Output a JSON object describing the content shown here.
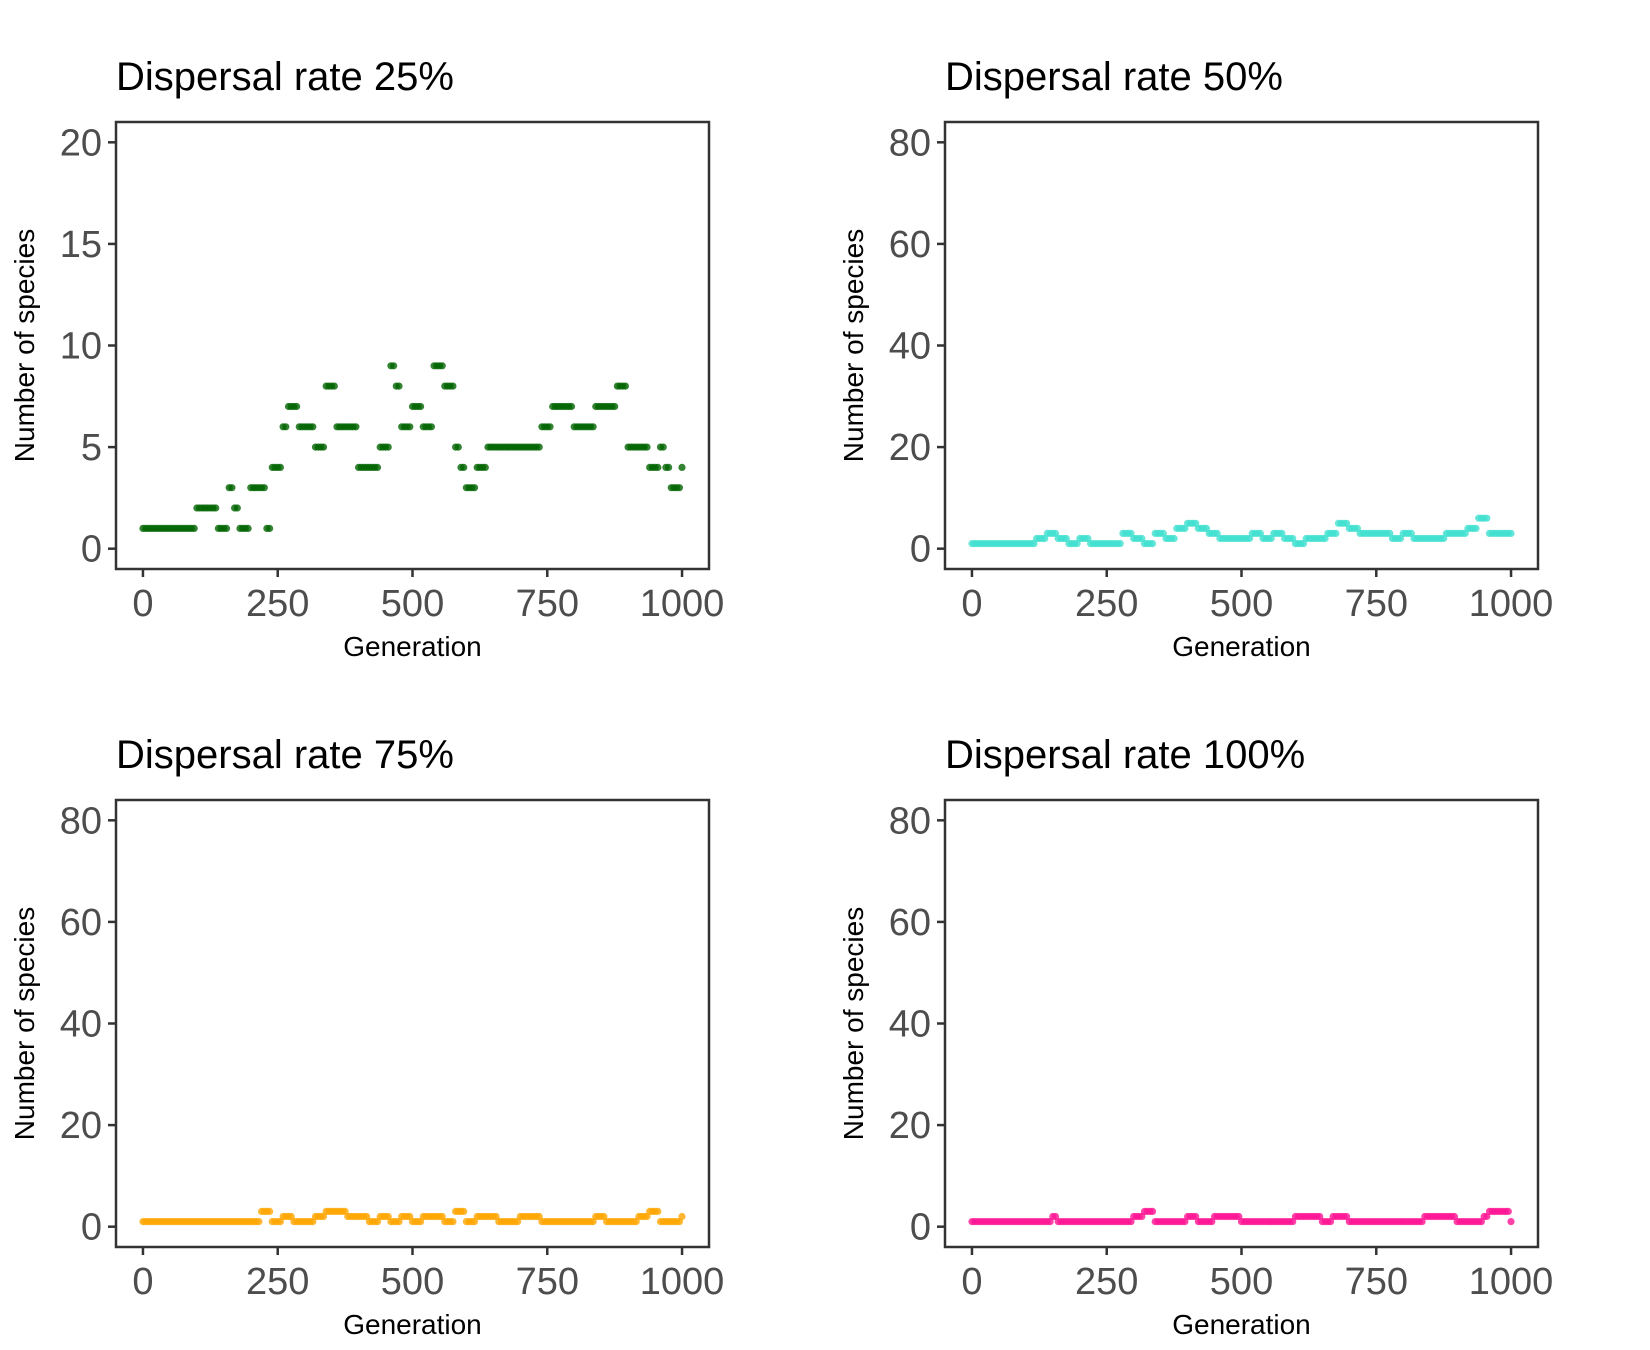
{
  "chart_data": [
    {
      "type": "scatter",
      "title": "Dispersal rate 25%",
      "xlabel": "Generation",
      "ylabel": "Number of species",
      "xlim": [
        -50,
        1050
      ],
      "ylim": [
        -1,
        21
      ],
      "xticks": [
        0,
        250,
        500,
        750,
        1000
      ],
      "yticks": [
        0,
        5,
        10,
        15,
        20
      ],
      "grid": false,
      "color": "#006400",
      "series": [
        {
          "x": [
            0,
            60,
            90,
            100,
            140,
            160,
            170,
            180,
            200,
            220,
            230,
            240,
            260,
            270,
            290,
            300,
            320,
            340,
            360,
            380,
            400,
            420,
            440,
            460,
            470,
            480,
            500,
            520,
            540,
            560,
            580,
            590,
            600,
            620,
            640,
            660,
            680,
            700,
            720,
            740,
            760,
            780,
            800,
            820,
            840,
            860,
            880,
            900,
            920,
            940,
            960,
            970,
            980,
            1000
          ],
          "y": [
            1,
            1,
            1,
            2,
            1,
            3,
            2,
            1,
            3,
            3,
            1,
            4,
            6,
            7,
            6,
            6,
            5,
            8,
            6,
            6,
            4,
            4,
            5,
            9,
            8,
            6,
            7,
            6,
            9,
            8,
            5,
            4,
            3,
            4,
            5,
            5,
            5,
            5,
            5,
            6,
            7,
            7,
            6,
            6,
            7,
            7,
            8,
            5,
            5,
            4,
            5,
            4,
            3,
            4
          ]
        }
      ]
    },
    {
      "type": "scatter",
      "title": "Dispersal rate 50%",
      "xlabel": "Generation",
      "ylabel": "Number of species",
      "xlim": [
        -50,
        1050
      ],
      "ylim": [
        -4,
        84
      ],
      "xticks": [
        0,
        250,
        500,
        750,
        1000
      ],
      "yticks": [
        0,
        20,
        40,
        60,
        80
      ],
      "grid": false,
      "color": "#40E0D0",
      "series": [
        {
          "x": [
            0,
            100,
            120,
            140,
            160,
            180,
            200,
            220,
            260,
            280,
            300,
            320,
            340,
            360,
            380,
            400,
            420,
            440,
            460,
            480,
            500,
            520,
            540,
            560,
            580,
            600,
            620,
            640,
            660,
            680,
            700,
            720,
            740,
            760,
            780,
            800,
            820,
            840,
            860,
            880,
            900,
            920,
            940,
            960,
            1000
          ],
          "y": [
            1,
            1,
            2,
            3,
            2,
            1,
            2,
            1,
            1,
            3,
            2,
            1,
            3,
            2,
            4,
            5,
            4,
            3,
            2,
            2,
            2,
            3,
            2,
            3,
            2,
            1,
            2,
            2,
            3,
            5,
            4,
            3,
            3,
            3,
            2,
            3,
            2,
            2,
            2,
            3,
            3,
            4,
            6,
            3,
            3
          ]
        }
      ]
    },
    {
      "type": "scatter",
      "title": "Dispersal rate 75%",
      "xlabel": "Generation",
      "ylabel": "Number of species",
      "xlim": [
        -50,
        1050
      ],
      "ylim": [
        -4,
        84
      ],
      "xticks": [
        0,
        250,
        500,
        750,
        1000
      ],
      "yticks": [
        0,
        20,
        40,
        60,
        80
      ],
      "grid": false,
      "color": "#FFA500",
      "series": [
        {
          "x": [
            0,
            150,
            200,
            220,
            240,
            260,
            280,
            300,
            320,
            340,
            360,
            380,
            400,
            420,
            440,
            460,
            480,
            500,
            520,
            540,
            560,
            580,
            600,
            620,
            640,
            660,
            680,
            700,
            720,
            740,
            760,
            780,
            800,
            820,
            840,
            860,
            880,
            900,
            920,
            940,
            960,
            1000
          ],
          "y": [
            1,
            1,
            1,
            3,
            1,
            2,
            1,
            1,
            2,
            3,
            3,
            2,
            2,
            1,
            2,
            1,
            2,
            1,
            2,
            2,
            1,
            3,
            1,
            2,
            2,
            1,
            1,
            2,
            2,
            1,
            1,
            1,
            1,
            1,
            2,
            1,
            1,
            1,
            2,
            3,
            1,
            2
          ]
        }
      ]
    },
    {
      "type": "scatter",
      "title": "Dispersal rate 100%",
      "xlabel": "Generation",
      "ylabel": "Number of species",
      "xlim": [
        -50,
        1050
      ],
      "ylim": [
        -4,
        84
      ],
      "xticks": [
        0,
        250,
        500,
        750,
        1000
      ],
      "yticks": [
        0,
        20,
        40,
        60,
        80
      ],
      "grid": false,
      "color": "#FF1493",
      "series": [
        {
          "x": [
            0,
            100,
            150,
            160,
            200,
            250,
            280,
            300,
            320,
            330,
            340,
            360,
            400,
            420,
            450,
            500,
            550,
            600,
            650,
            670,
            700,
            750,
            800,
            840,
            900,
            950,
            960,
            1000
          ],
          "y": [
            1,
            1,
            2,
            1,
            1,
            1,
            1,
            2,
            3,
            3,
            1,
            1,
            2,
            1,
            2,
            1,
            1,
            2,
            1,
            2,
            1,
            1,
            1,
            2,
            1,
            2,
            3,
            1
          ]
        }
      ]
    }
  ]
}
